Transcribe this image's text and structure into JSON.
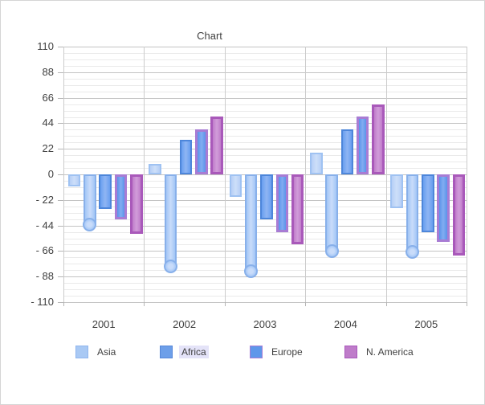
{
  "window": {
    "background": "#ffffff",
    "border_color": "#d5d5d5"
  },
  "chart_data": {
    "type": "bar",
    "title": "Chart",
    "categories": [
      "2001",
      "2002",
      "2003",
      "2004",
      "2005"
    ],
    "series": [
      {
        "name": "Asia",
        "values": [
          -10,
          9,
          -19,
          19,
          -29
        ],
        "fill": "#b7cff6",
        "fill_center": "#cddff9",
        "border": "#9fc2f2",
        "border_px": 2,
        "cap": "flat"
      },
      {
        "name": "(unlabeled rounded-cap series)",
        "values": [
          -43,
          -79,
          -83,
          -66,
          -67
        ],
        "fill": "#a3c6f6",
        "fill_center": "#c9dcfa",
        "border": "#88b0ea",
        "border_px": 2,
        "cap": "circle"
      },
      {
        "name": "Africa",
        "values": [
          -30,
          30,
          -39,
          39,
          -50
        ],
        "fill": "#699ff0",
        "fill_center": "#8fb5f3",
        "border": "#4d86da",
        "border_px": 2,
        "cap": "flat"
      },
      {
        "name": "Europe",
        "values": [
          -39,
          39,
          -50,
          50,
          -58
        ],
        "fill": "#5b94ea",
        "fill_center": "#82acf1",
        "border": "#a87cd4",
        "border_px": 3,
        "cap": "flat"
      },
      {
        "name": "N. America",
        "values": [
          -51,
          50,
          -60,
          60,
          -70
        ],
        "fill": "#c07dca",
        "fill_center": "#d19cda",
        "border": "#a959ba",
        "border_px": 3,
        "cap": "flat"
      }
    ],
    "y_axis": {
      "min": -110,
      "max": 110,
      "major_step": 22,
      "minor_step": 5.5,
      "tick_values": [
        110,
        88,
        66,
        44,
        22,
        0,
        -22,
        -44,
        -66,
        -88,
        -110
      ],
      "tick_labels": [
        "110",
        "88",
        "66",
        "44",
        "22",
        "0",
        "- 22",
        "- 44",
        "- 66",
        "- 88",
        "- 110"
      ]
    },
    "grid": {
      "major_color": "#c3c3c3",
      "minor_color": "#eaeaea",
      "band_separator_color": "#cccccc"
    },
    "legend": {
      "position": "bottom",
      "items": [
        {
          "label": "Asia",
          "fill": "#a9c9f4",
          "border": "#8fb5ee",
          "highlighted": false
        },
        {
          "label": "Africa",
          "fill": "#6d9fe9",
          "border": "#5586d8",
          "highlighted": true
        },
        {
          "label": "Europe",
          "fill": "#5e97ea",
          "border": "#a77dd4",
          "highlighted": false
        },
        {
          "label": "N. America",
          "fill": "#bf7cca",
          "border": "#a958bb",
          "highlighted": false
        }
      ]
    }
  }
}
